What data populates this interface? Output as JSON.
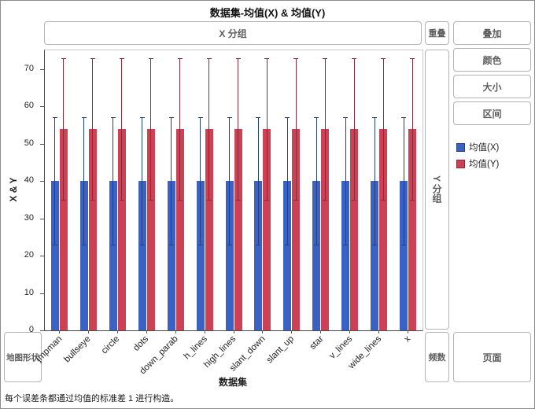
{
  "window": {
    "title": "数据集-均值(X) & 均值(Y)"
  },
  "zones": {
    "x_group": "X 分组",
    "overlay": "重叠",
    "stack": "叠加",
    "color": "颜色",
    "size": "大小",
    "interval": "区间",
    "y_group": "Y 分组",
    "map_shape": "地图形状",
    "frequency": "频数",
    "page": "页面"
  },
  "axes": {
    "y_label": "X & Y",
    "x_label": "数据集"
  },
  "caption": "每个误差条都通过均值的标准差 1 进行构造。",
  "legend": {
    "items": [
      {
        "label": "均值(X)",
        "color": "#3a62c4"
      },
      {
        "label": "均值(Y)",
        "color": "#cc4154"
      }
    ]
  },
  "chart_data": {
    "type": "bar",
    "title": "数据集-均值(X) & 均值(Y)",
    "xlabel": "数据集",
    "ylabel": "X & Y",
    "ylim": [
      0,
      75
    ],
    "yticks": [
      0,
      10,
      20,
      30,
      40,
      50,
      60,
      70
    ],
    "grid": false,
    "legend_position": "right",
    "error_note": "每个误差条都通过均值的标准差 1 进行构造。",
    "categories": [
      "jmpman",
      "bullseye",
      "circle",
      "dots",
      "down_parab",
      "h_lines",
      "high_lines",
      "slant_down",
      "slant_up",
      "star",
      "v_lines",
      "wide_lines",
      "x"
    ],
    "series": [
      {
        "name": "均值(X)",
        "color": "#3a62c4",
        "error_color": "#24407e",
        "values": [
          40,
          40,
          40,
          40,
          40,
          40,
          40,
          40,
          40,
          40,
          40,
          40,
          40
        ],
        "error_low": [
          23,
          23,
          23,
          23,
          23,
          23,
          23,
          23,
          23,
          23,
          23,
          23,
          23
        ],
        "error_high": [
          57,
          57,
          57,
          57,
          57,
          57,
          57,
          57,
          57,
          57,
          57,
          57,
          57
        ]
      },
      {
        "name": "均值(Y)",
        "color": "#cc4154",
        "error_color": "#8a2a38",
        "values": [
          54,
          54,
          54,
          54,
          54,
          54,
          54,
          54,
          54,
          54,
          54,
          54,
          54
        ],
        "error_low": [
          35,
          35,
          35,
          35,
          35,
          35,
          35,
          35,
          35,
          35,
          35,
          35,
          35
        ],
        "error_high": [
          73,
          73,
          73,
          73,
          73,
          73,
          73,
          73,
          73,
          73,
          73,
          73,
          73
        ]
      }
    ]
  }
}
